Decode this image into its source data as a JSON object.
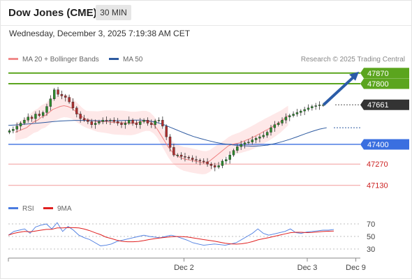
{
  "header": {
    "title": "Dow Jones (CME)",
    "timeframe": "30 MIN",
    "datetime": "Wednesday, December 3, 2025 7:19:38 AM CET"
  },
  "legend": {
    "ma20_label": "MA 20 + Bollinger Bands",
    "ma50_label": "MA 50",
    "credit": "Research © 2025 Trading Central"
  },
  "rsi_legend": {
    "rsi_label": "RSI",
    "ma9_label": "9MA"
  },
  "colors": {
    "green_level": "#5ba51e",
    "blue_level": "#3a6fe0",
    "red_level": "#e03c3c",
    "current_price": "#333333",
    "ma20_bollinger": "#f08080",
    "ma50": "#2d5aa0",
    "rsi": "#4a7be0",
    "rsi_ma9": "#e02020",
    "candle_up": "#2e8b2e",
    "candle_down": "#b03030",
    "arrow": "#2b5ca8"
  },
  "chart_data": {
    "type": "candlestick",
    "price_levels": [
      {
        "value": 47870,
        "label": "47870",
        "kind": "resistance",
        "color": "#5ba51e"
      },
      {
        "value": 47800,
        "label": "47800",
        "kind": "resistance",
        "color": "#5ba51e"
      },
      {
        "value": 47661,
        "label": "47661",
        "kind": "current",
        "color": "#333333"
      },
      {
        "value": 47400,
        "label": "47400",
        "kind": "pivot",
        "color": "#3a6fe0"
      },
      {
        "value": 47270,
        "label": "47270",
        "kind": "support",
        "color": "#e03c3c"
      },
      {
        "value": 47130,
        "label": "47130",
        "kind": "support",
        "color": "#e03c3c"
      }
    ],
    "x_ticks": [
      "Dec 2",
      "Dec 3",
      "Dec 9"
    ],
    "x_tick_index": [
      47,
      80,
      93
    ],
    "price_range": [
      47055,
      47892
    ],
    "candles_close": [
      47490,
      47500,
      47520,
      47540,
      47560,
      47580,
      47570,
      47600,
      47590,
      47610,
      47650,
      47700,
      47760,
      47730,
      47720,
      47710,
      47680,
      47640,
      47600,
      47570,
      47560,
      47550,
      47530,
      47540,
      47550,
      47560,
      47555,
      47560,
      47550,
      47540,
      47530,
      47540,
      47560,
      47540,
      47530,
      47550,
      47560,
      47540,
      47530,
      47555,
      47560,
      47520,
      47450,
      47380,
      47330,
      47330,
      47320,
      47315,
      47310,
      47300,
      47295,
      47290,
      47285,
      47270,
      47260,
      47250,
      47260,
      47290,
      47300,
      47330,
      47360,
      47385,
      47400,
      47410,
      47415,
      47430,
      47440,
      47450,
      47460,
      47480,
      47510,
      47530,
      47540,
      47560,
      47580,
      47590,
      47600,
      47610,
      47620,
      47630,
      47640,
      47650,
      47655,
      47660,
      47661
    ],
    "ma20": [
      47480,
      47490,
      47500,
      47510,
      47530,
      47550,
      47560,
      47580,
      47590,
      47610,
      47630,
      47640,
      47650,
      47655,
      47650,
      47640,
      47620,
      47600,
      47580,
      47565,
      47560,
      47555,
      47550,
      47550,
      47550,
      47548,
      47545,
      47544,
      47543,
      47542,
      47540,
      47538,
      47540,
      47545,
      47552,
      47555,
      47550,
      47530,
      47500,
      47460,
      47420,
      47380,
      47350,
      47330,
      47315,
      47305,
      47300,
      47295,
      47290,
      47285,
      47280,
      47280,
      47290,
      47310,
      47330,
      47350,
      47370,
      47390,
      47400,
      47405,
      47410,
      47420,
      47430,
      47440,
      47452,
      47465,
      47478,
      47492,
      47505,
      47520,
      47535,
      47550,
      47570,
      47590
    ],
    "ma50": [
      47525,
      47528,
      47532,
      47536,
      47540,
      47545,
      47550,
      47554,
      47556,
      47558,
      47558,
      47557,
      47556,
      47555,
      47556,
      47557,
      47558,
      47560,
      47560,
      47555,
      47545,
      47530,
      47510,
      47490,
      47470,
      47452,
      47438,
      47425,
      47413,
      47404,
      47398,
      47393,
      47390,
      47388,
      47390,
      47395,
      47405,
      47418,
      47433,
      47450,
      47468,
      47485,
      47500,
      47510
    ],
    "rsi": {
      "name": "RSI",
      "levels": [
        70,
        50,
        30
      ],
      "values": [
        52,
        58,
        60,
        62,
        55,
        65,
        68,
        70,
        62,
        72,
        58,
        66,
        60,
        52,
        48,
        45,
        40,
        35,
        36,
        38,
        42,
        44,
        46,
        48,
        50,
        52,
        50,
        49,
        48,
        50,
        52,
        50,
        47,
        44,
        40,
        38,
        36,
        37,
        38,
        37,
        36,
        38,
        40,
        45,
        50,
        55,
        62,
        55,
        52,
        54,
        56,
        58,
        62,
        56,
        55,
        57,
        58,
        59,
        60,
        60,
        61
      ]
    }
  }
}
